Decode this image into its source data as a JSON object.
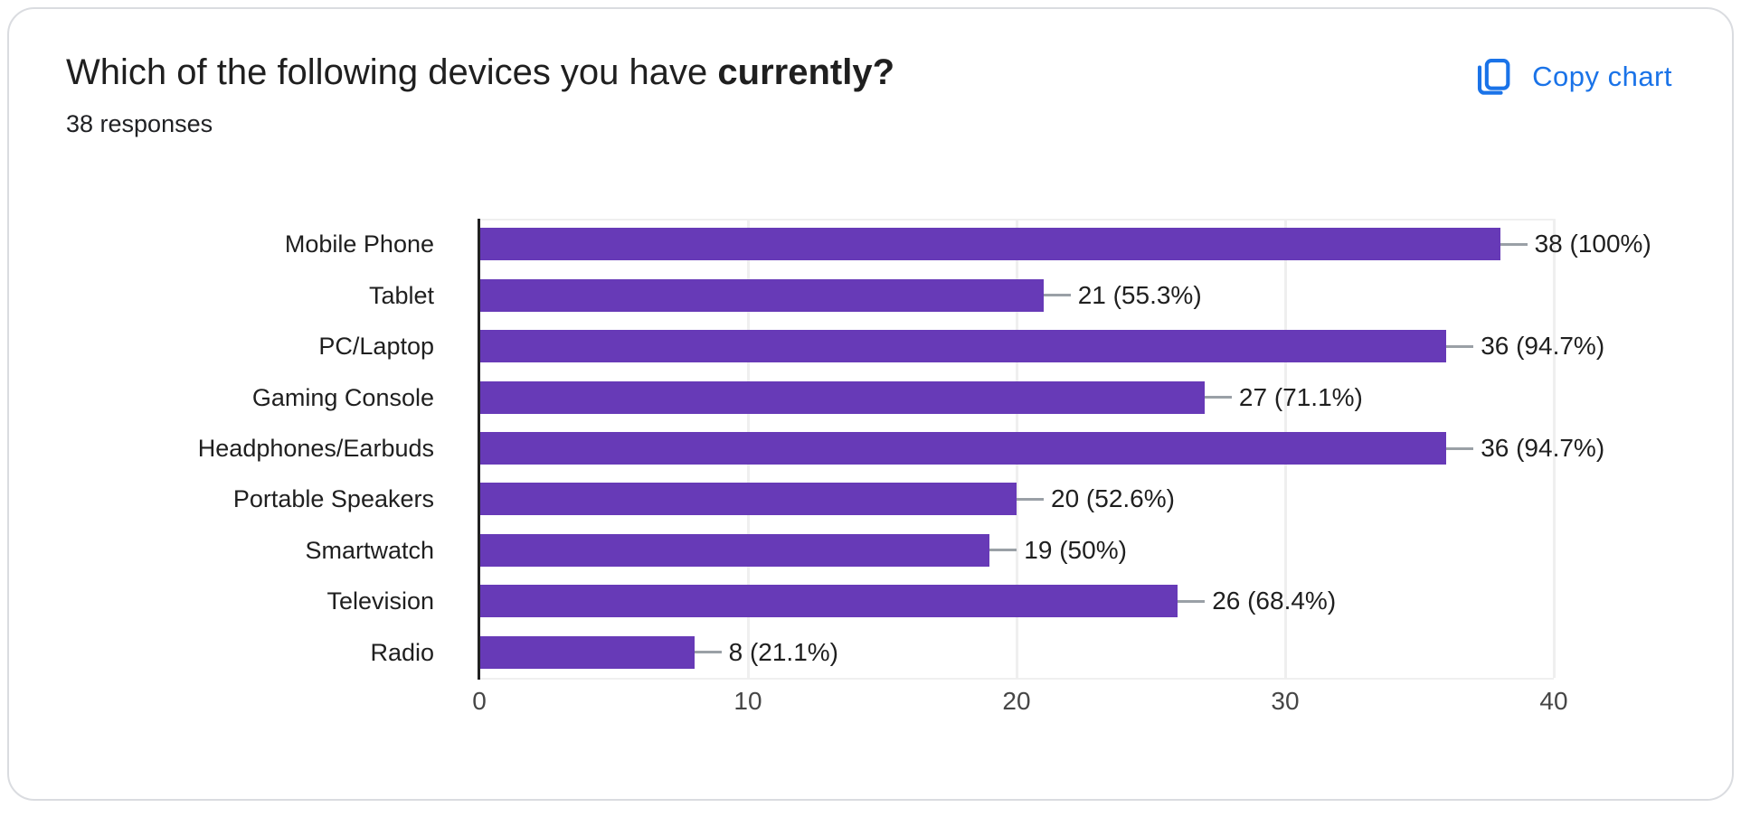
{
  "header": {
    "title_prefix": "Which of the following devices you have ",
    "title_emphasis": "currently?",
    "responses_count": "38 responses"
  },
  "toolbar": {
    "copy_chart_label": "Copy chart",
    "accent_color": "#1a73e8"
  },
  "chart_data": {
    "type": "bar",
    "orientation": "horizontal",
    "title": "Which of the following devices you have currently?",
    "subtitle": "38 responses",
    "categories": [
      "Mobile Phone",
      "Tablet",
      "PC/Laptop",
      "Gaming Console",
      "Headphones/Earbuds",
      "Portable Speakers",
      "Smartwatch",
      "Television",
      "Radio"
    ],
    "values": [
      38,
      21,
      36,
      27,
      36,
      20,
      19,
      26,
      8
    ],
    "value_labels": [
      "38 (100%)",
      "21 (55.3%)",
      "36 (94.7%)",
      "27 (71.1%)",
      "36 (94.7%)",
      "20 (52.6%)",
      "19 (50%)",
      "26 (68.4%)",
      "8 (21.1%)"
    ],
    "xlim": [
      0,
      40
    ],
    "x_ticks": [
      "0",
      "10",
      "20",
      "30",
      "40"
    ],
    "grid": true,
    "legend": "none",
    "bar_color": "#673ab7",
    "leader_line_color": "#9aa0a6",
    "grid_color": "#efefef",
    "axis_color": "#212121",
    "tick_label_color": "#464646"
  }
}
